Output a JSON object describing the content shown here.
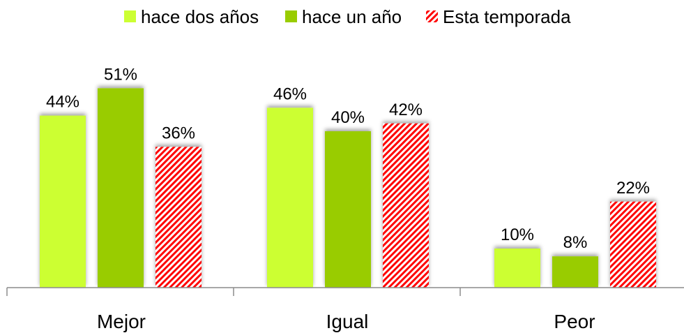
{
  "chart_data": {
    "type": "bar",
    "title": "",
    "xlabel": "",
    "ylabel": "",
    "categories": [
      "Mejor",
      "Igual",
      "Peor"
    ],
    "series": [
      {
        "name": "hace dos años",
        "color": "#ccff33",
        "pattern": "solid",
        "values": [
          44,
          46,
          10
        ],
        "labels": [
          "44%",
          "46%",
          "10%"
        ]
      },
      {
        "name": "hace un año",
        "color": "#99cc00",
        "pattern": "solid",
        "values": [
          51,
          40,
          8
        ],
        "labels": [
          "51%",
          "40%",
          "8%"
        ]
      },
      {
        "name": "Esta temporada",
        "color": "#ff0000",
        "pattern": "diagonal-stripes",
        "values": [
          36,
          42,
          22
        ],
        "labels": [
          "36%",
          "42%",
          "22%"
        ]
      }
    ],
    "unit": "%",
    "ylim": [
      0,
      60
    ],
    "grid": false,
    "legend_position": "top"
  }
}
